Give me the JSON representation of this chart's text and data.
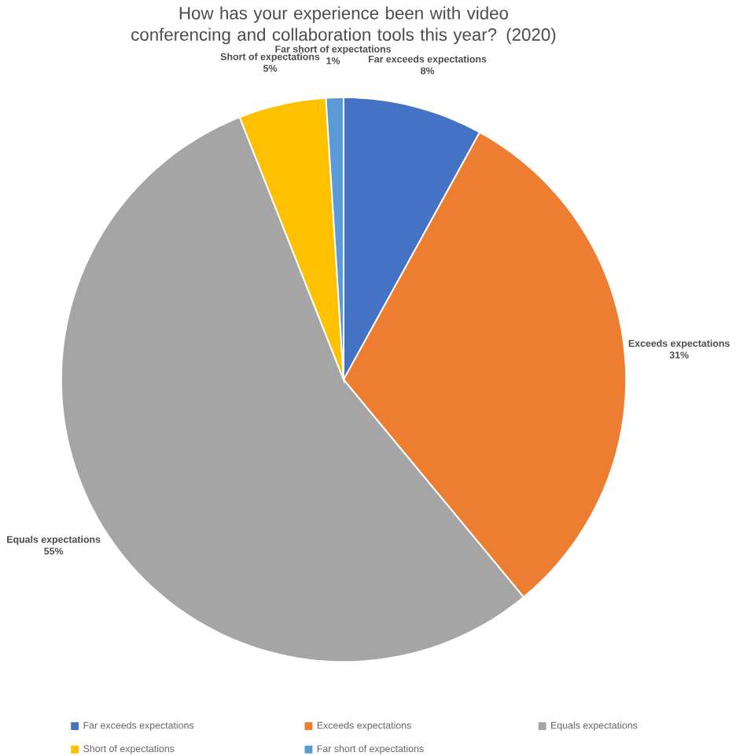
{
  "chart_data": {
    "type": "pie",
    "title": "How has your experience been with video conferencing and collaboration tools this year? (2020)",
    "categories": [
      "Far exceeds expectations",
      "Exceeds expectations",
      "Equals expectations",
      "Short of expectations",
      "Far short of expectations"
    ],
    "values": [
      8,
      31,
      55,
      5,
      1
    ],
    "value_labels": [
      "8%",
      "31%",
      "55%",
      "5%",
      "1%"
    ],
    "colors": [
      "#4472c4",
      "#ed7d31",
      "#a5a5a5",
      "#ffc000",
      "#5b9bd5"
    ],
    "legend": "bottom"
  }
}
